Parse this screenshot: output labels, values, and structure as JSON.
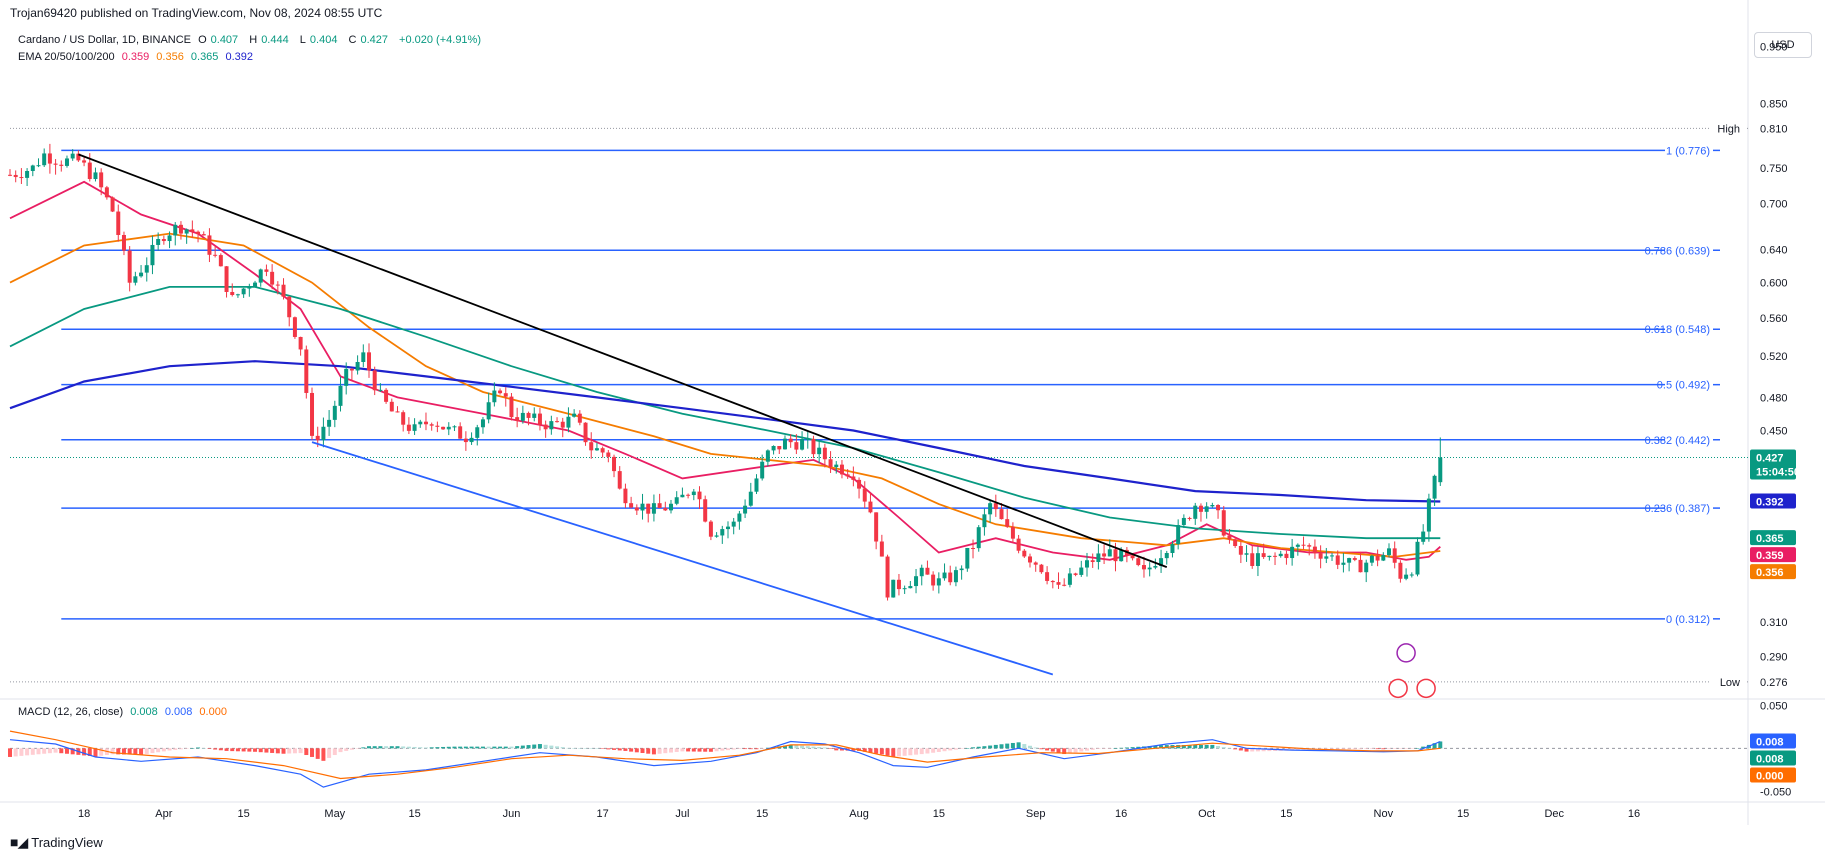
{
  "header": {
    "publisher": "Trojan69420 published on TradingView.com, Nov 08, 2024 08:55 UTC",
    "symbol": "Cardano / US Dollar, 1D, BINANCE",
    "o_label": "O",
    "o_value": "0.407",
    "h_label": "H",
    "h_value": "0.444",
    "l_label": "L",
    "l_value": "0.404",
    "c_label": "C",
    "c_value": "0.427",
    "change": "+0.020 (+4.91%)",
    "ema_label": "EMA 20/50/100/200",
    "ema_values": [
      "0.359",
      "0.356",
      "0.365",
      "0.392"
    ],
    "currency": "USD"
  },
  "colors": {
    "up": "#089981",
    "down": "#f23645",
    "fib": "#2962ff",
    "ema20": "#e91e63",
    "ema50": "#f57c00",
    "ema100": "#089981",
    "ema200": "#1e22cc",
    "trend_black": "#000000",
    "trend_blue": "#2962ff",
    "macd_line": "#2962ff",
    "signal_line": "#ff6d00"
  },
  "chart_data": {
    "type": "candlestick",
    "title": "Cardano / US Dollar, 1D, BINANCE",
    "ylim": [
      0.268,
      1.0
    ],
    "y_scale": "log",
    "y_ticks": [
      "0.950",
      "0.850",
      "0.750",
      "0.700",
      "0.640",
      "0.600",
      "0.560",
      "0.520",
      "0.480",
      "0.450",
      "0.310",
      "0.290"
    ],
    "y_tick_values": [
      0.95,
      0.85,
      0.75,
      0.7,
      0.64,
      0.6,
      0.56,
      0.52,
      0.48,
      0.45,
      0.31,
      0.29
    ],
    "x_ticks": [
      "18",
      "Apr",
      "15",
      "May",
      "15",
      "Jun",
      "17",
      "Jul",
      "15",
      "Aug",
      "15",
      "Sep",
      "16",
      "Oct",
      "15",
      "Nov",
      "15",
      "Dec",
      "16"
    ],
    "x_tick_days": [
      0,
      14,
      28,
      44,
      58,
      75,
      91,
      105,
      119,
      136,
      150,
      167,
      182,
      197,
      211,
      228,
      242,
      258,
      272
    ],
    "x_range_days": [
      -13,
      292
    ],
    "candle_keypoints": [
      [
        -13,
        0.74
      ],
      [
        -9,
        0.75
      ],
      [
        -7,
        0.77
      ],
      [
        -4,
        0.76
      ],
      [
        -1,
        0.76
      ],
      [
        2,
        0.735
      ],
      [
        5,
        0.69
      ],
      [
        8,
        0.6
      ],
      [
        11,
        0.625
      ],
      [
        14,
        0.66
      ],
      [
        17,
        0.67
      ],
      [
        20,
        0.66
      ],
      [
        23,
        0.63
      ],
      [
        26,
        0.58
      ],
      [
        29,
        0.6
      ],
      [
        32,
        0.62
      ],
      [
        35,
        0.58
      ],
      [
        38,
        0.53
      ],
      [
        40,
        0.44
      ],
      [
        43,
        0.46
      ],
      [
        46,
        0.5
      ],
      [
        49,
        0.52
      ],
      [
        52,
        0.48
      ],
      [
        55,
        0.46
      ],
      [
        58,
        0.45
      ],
      [
        61,
        0.46
      ],
      [
        64,
        0.45
      ],
      [
        67,
        0.445
      ],
      [
        70,
        0.46
      ],
      [
        73,
        0.49
      ],
      [
        75,
        0.465
      ],
      [
        78,
        0.46
      ],
      [
        82,
        0.455
      ],
      [
        86,
        0.46
      ],
      [
        89,
        0.435
      ],
      [
        92,
        0.43
      ],
      [
        94,
        0.4
      ],
      [
        97,
        0.39
      ],
      [
        100,
        0.385
      ],
      [
        104,
        0.39
      ],
      [
        107,
        0.405
      ],
      [
        110,
        0.37
      ],
      [
        114,
        0.375
      ],
      [
        117,
        0.4
      ],
      [
        120,
        0.43
      ],
      [
        123,
        0.44
      ],
      [
        126,
        0.44
      ],
      [
        129,
        0.43
      ],
      [
        132,
        0.42
      ],
      [
        135,
        0.415
      ],
      [
        138,
        0.385
      ],
      [
        141,
        0.33
      ],
      [
        144,
        0.335
      ],
      [
        147,
        0.34
      ],
      [
        150,
        0.335
      ],
      [
        153,
        0.34
      ],
      [
        156,
        0.36
      ],
      [
        159,
        0.39
      ],
      [
        162,
        0.37
      ],
      [
        165,
        0.355
      ],
      [
        168,
        0.345
      ],
      [
        171,
        0.33
      ],
      [
        174,
        0.34
      ],
      [
        177,
        0.35
      ],
      [
        180,
        0.355
      ],
      [
        183,
        0.35
      ],
      [
        186,
        0.34
      ],
      [
        189,
        0.355
      ],
      [
        192,
        0.37
      ],
      [
        195,
        0.39
      ],
      [
        197,
        0.39
      ],
      [
        199,
        0.38
      ],
      [
        202,
        0.355
      ],
      [
        205,
        0.35
      ],
      [
        208,
        0.35
      ],
      [
        211,
        0.355
      ],
      [
        214,
        0.36
      ],
      [
        217,
        0.355
      ],
      [
        220,
        0.35
      ],
      [
        223,
        0.345
      ],
      [
        226,
        0.35
      ],
      [
        229,
        0.355
      ],
      [
        231,
        0.34
      ],
      [
        233,
        0.345
      ],
      [
        235,
        0.37
      ],
      [
        237,
        0.407
      ],
      [
        238,
        0.427
      ]
    ],
    "last_candle": {
      "o": 0.407,
      "h": 0.444,
      "l": 0.404,
      "c": 0.427
    },
    "ema_series": [
      {
        "name": "EMA 20",
        "points": [
          [
            -13,
            0.68
          ],
          [
            0,
            0.73
          ],
          [
            10,
            0.685
          ],
          [
            20,
            0.66
          ],
          [
            30,
            0.61
          ],
          [
            38,
            0.57
          ],
          [
            45,
            0.5
          ],
          [
            55,
            0.48
          ],
          [
            70,
            0.465
          ],
          [
            85,
            0.45
          ],
          [
            95,
            0.43
          ],
          [
            105,
            0.41
          ],
          [
            120,
            0.42
          ],
          [
            128,
            0.425
          ],
          [
            135,
            0.41
          ],
          [
            143,
            0.38
          ],
          [
            150,
            0.355
          ],
          [
            160,
            0.365
          ],
          [
            170,
            0.355
          ],
          [
            180,
            0.35
          ],
          [
            190,
            0.36
          ],
          [
            197,
            0.375
          ],
          [
            205,
            0.36
          ],
          [
            215,
            0.355
          ],
          [
            225,
            0.355
          ],
          [
            232,
            0.35
          ],
          [
            236,
            0.352
          ],
          [
            238,
            0.359
          ]
        ]
      },
      {
        "name": "EMA 50",
        "points": [
          [
            -13,
            0.6
          ],
          [
            0,
            0.645
          ],
          [
            15,
            0.66
          ],
          [
            28,
            0.645
          ],
          [
            40,
            0.6
          ],
          [
            50,
            0.55
          ],
          [
            60,
            0.51
          ],
          [
            70,
            0.485
          ],
          [
            85,
            0.465
          ],
          [
            100,
            0.445
          ],
          [
            110,
            0.43
          ],
          [
            120,
            0.425
          ],
          [
            130,
            0.42
          ],
          [
            140,
            0.41
          ],
          [
            150,
            0.39
          ],
          [
            160,
            0.375
          ],
          [
            175,
            0.365
          ],
          [
            190,
            0.36
          ],
          [
            200,
            0.365
          ],
          [
            210,
            0.358
          ],
          [
            220,
            0.355
          ],
          [
            230,
            0.352
          ],
          [
            238,
            0.356
          ]
        ]
      },
      {
        "name": "EMA 100",
        "points": [
          [
            -13,
            0.53
          ],
          [
            0,
            0.57
          ],
          [
            15,
            0.595
          ],
          [
            30,
            0.595
          ],
          [
            45,
            0.57
          ],
          [
            60,
            0.54
          ],
          [
            75,
            0.51
          ],
          [
            90,
            0.485
          ],
          [
            105,
            0.465
          ],
          [
            120,
            0.45
          ],
          [
            135,
            0.435
          ],
          [
            150,
            0.415
          ],
          [
            165,
            0.395
          ],
          [
            180,
            0.38
          ],
          [
            195,
            0.372
          ],
          [
            210,
            0.368
          ],
          [
            225,
            0.365
          ],
          [
            238,
            0.365
          ]
        ]
      },
      {
        "name": "EMA 200",
        "points": [
          [
            -13,
            0.47
          ],
          [
            0,
            0.495
          ],
          [
            15,
            0.51
          ],
          [
            30,
            0.515
          ],
          [
            45,
            0.51
          ],
          [
            60,
            0.5
          ],
          [
            75,
            0.49
          ],
          [
            90,
            0.48
          ],
          [
            105,
            0.47
          ],
          [
            120,
            0.46
          ],
          [
            135,
            0.45
          ],
          [
            150,
            0.435
          ],
          [
            165,
            0.42
          ],
          [
            180,
            0.41
          ],
          [
            195,
            0.4
          ],
          [
            210,
            0.397
          ],
          [
            225,
            0.393
          ],
          [
            238,
            0.392
          ]
        ]
      }
    ],
    "trendlines": [
      {
        "name": "descending resistance",
        "from": [
          -1,
          0.77
        ],
        "to": [
          190,
          0.345
        ]
      },
      {
        "name": "descending support",
        "from": [
          40,
          0.44
        ],
        "to": [
          170,
          0.28
        ]
      }
    ],
    "fib_levels": [
      {
        "label": "1 (0.776)",
        "value": 0.776
      },
      {
        "label": "0.786 (0.639)",
        "value": 0.639
      },
      {
        "label": "0.618 (0.548)",
        "value": 0.548
      },
      {
        "label": "0.5 (0.492)",
        "value": 0.492
      },
      {
        "label": "0.382 (0.442)",
        "value": 0.442
      },
      {
        "label": "0.236 (0.387)",
        "value": 0.387
      },
      {
        "label": "0 (0.312)",
        "value": 0.312
      }
    ],
    "high": {
      "label": "High",
      "value": "0.810",
      "y": 0.81
    },
    "low": {
      "label": "Low",
      "value": "0.276",
      "y": 0.276
    },
    "price_tags": [
      {
        "text": "0.427",
        "sub": "15:04:50",
        "value": 0.427,
        "color": "#089981"
      },
      {
        "text": "0.392",
        "value": 0.392,
        "color": "#1e22cc"
      },
      {
        "text": "0.365",
        "value": 0.365,
        "color": "#089981"
      },
      {
        "text": "0.359",
        "value": 0.359,
        "color": "#e91e63"
      },
      {
        "text": "0.356",
        "value": 0.356,
        "color": "#f57c00"
      }
    ],
    "macd": {
      "label": "MACD (12, 26, close)",
      "values": [
        "0.008",
        "0.008",
        "0.000"
      ],
      "ylim": [
        -0.06,
        0.055
      ],
      "y_ticks": [
        "0.050",
        "-0.050"
      ],
      "y_tick_values": [
        0.05,
        -0.05
      ],
      "tags": [
        {
          "text": "0.008",
          "value": 0.008,
          "color": "#2962ff"
        },
        {
          "text": "0.008",
          "value": 0.008,
          "color": "#089981"
        },
        {
          "text": "0.000",
          "value": 0.0,
          "color": "#ff6d00"
        }
      ],
      "macd_line": [
        [
          -13,
          0.01
        ],
        [
          -5,
          0.005
        ],
        [
          2,
          -0.01
        ],
        [
          10,
          -0.015
        ],
        [
          20,
          -0.01
        ],
        [
          30,
          -0.02
        ],
        [
          38,
          -0.03
        ],
        [
          42,
          -0.045
        ],
        [
          50,
          -0.03
        ],
        [
          60,
          -0.025
        ],
        [
          70,
          -0.015
        ],
        [
          80,
          -0.005
        ],
        [
          90,
          -0.01
        ],
        [
          100,
          -0.02
        ],
        [
          110,
          -0.015
        ],
        [
          118,
          -0.005
        ],
        [
          124,
          0.008
        ],
        [
          130,
          0.005
        ],
        [
          136,
          -0.005
        ],
        [
          142,
          -0.02
        ],
        [
          148,
          -0.022
        ],
        [
          156,
          -0.01
        ],
        [
          164,
          0.0
        ],
        [
          172,
          -0.012
        ],
        [
          180,
          -0.005
        ],
        [
          190,
          0.005
        ],
        [
          198,
          0.01
        ],
        [
          204,
          0.0
        ],
        [
          212,
          -0.002
        ],
        [
          220,
          -0.003
        ],
        [
          228,
          -0.004
        ],
        [
          234,
          -0.003
        ],
        [
          238,
          0.008
        ]
      ],
      "signal_line": [
        [
          -13,
          0.02
        ],
        [
          -5,
          0.01
        ],
        [
          5,
          -0.005
        ],
        [
          15,
          -0.01
        ],
        [
          25,
          -0.012
        ],
        [
          35,
          -0.02
        ],
        [
          45,
          -0.035
        ],
        [
          55,
          -0.03
        ],
        [
          65,
          -0.022
        ],
        [
          75,
          -0.012
        ],
        [
          85,
          -0.008
        ],
        [
          95,
          -0.012
        ],
        [
          105,
          -0.014
        ],
        [
          115,
          -0.008
        ],
        [
          124,
          0.004
        ],
        [
          132,
          0.004
        ],
        [
          140,
          -0.008
        ],
        [
          148,
          -0.016
        ],
        [
          158,
          -0.01
        ],
        [
          168,
          -0.005
        ],
        [
          178,
          -0.006
        ],
        [
          188,
          0.0
        ],
        [
          198,
          0.006
        ],
        [
          206,
          0.003
        ],
        [
          216,
          -0.001
        ],
        [
          226,
          -0.003
        ],
        [
          234,
          -0.003
        ],
        [
          238,
          0.0
        ]
      ]
    }
  },
  "footer": {
    "brand": "TradingView"
  }
}
